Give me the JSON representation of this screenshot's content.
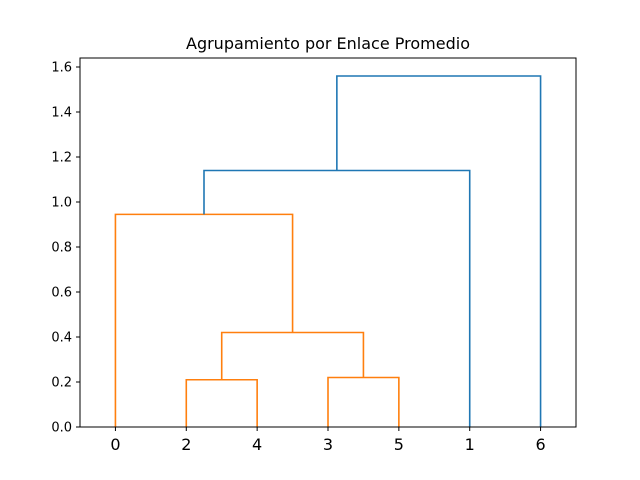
{
  "chart_data": {
    "type": "dendrogram",
    "title": "Agrupamiento por Enlace Promedio",
    "xlabel": "",
    "ylabel": "",
    "leaf_labels": [
      "0",
      "2",
      "4",
      "3",
      "5",
      "1",
      "6"
    ],
    "ylim": [
      0,
      1.64
    ],
    "yticks": [
      0.0,
      0.2,
      0.4,
      0.6,
      0.8,
      1.0,
      1.2,
      1.4,
      1.6
    ],
    "ytick_labels": [
      "0.0",
      "0.2",
      "0.4",
      "0.6",
      "0.8",
      "1.0",
      "1.2",
      "1.4",
      "1.6"
    ],
    "grid": false,
    "colors": {
      "cluster": "#ff7f0e",
      "above_threshold": "#1f77b4"
    },
    "merges": [
      {
        "members": [
          "2",
          "4"
        ],
        "height": 0.21,
        "color": "#ff7f0e"
      },
      {
        "members": [
          "3",
          "5"
        ],
        "height": 0.22,
        "color": "#ff7f0e"
      },
      {
        "members": [
          "(2,4)",
          "(3,5)"
        ],
        "height": 0.42,
        "color": "#ff7f0e"
      },
      {
        "members": [
          "0",
          "(2,4,3,5)"
        ],
        "height": 0.945,
        "color": "#ff7f0e"
      },
      {
        "members": [
          "(0,2,4,3,5)",
          "1"
        ],
        "height": 1.14,
        "color": "#1f77b4"
      },
      {
        "members": [
          "(0,2,4,3,5,1)",
          "6"
        ],
        "height": 1.56,
        "color": "#1f77b4"
      }
    ]
  }
}
